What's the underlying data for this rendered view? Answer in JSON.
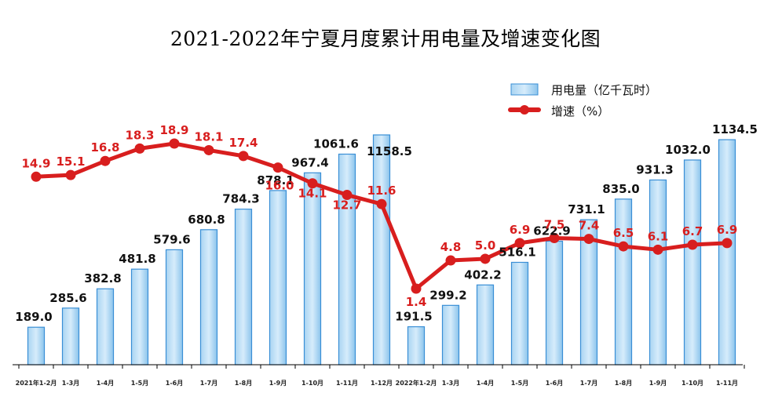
{
  "chart_data": {
    "type": "bar+line",
    "title": "2021-2022年宁夏月度累计用电量及增速变化图",
    "categories": [
      "2021年1-2月",
      "1-3月",
      "1-4月",
      "1-5月",
      "1-6月",
      "1-7月",
      "1-8月",
      "1-9月",
      "1-10月",
      "1-11月",
      "1-12月",
      "2022年1-2月",
      "1-3月",
      "1-4月",
      "1-5月",
      "1-6月",
      "1-7月",
      "1-8月",
      "1-9月",
      "1-10月",
      "1-11月"
    ],
    "series": [
      {
        "name": "用电量（亿千瓦时）",
        "type": "bar",
        "color": "#7fbde8",
        "values": [
          189.0,
          285.6,
          382.8,
          481.8,
          579.6,
          680.8,
          784.3,
          878.1,
          967.4,
          1061.6,
          1158.5,
          191.5,
          299.2,
          402.2,
          516.1,
          622.9,
          731.1,
          835.0,
          931.3,
          1032.0,
          1134.5
        ],
        "labels": [
          "189.0",
          "285.6",
          "382.8",
          "481.8",
          "579.6",
          "680.8",
          "784.3",
          "878.1",
          "967.4",
          "1061.6",
          "1158.5",
          "191.5",
          "299.2",
          "402.2",
          "516.1",
          "622.9",
          "731.1",
          "835.0",
          "931.3",
          "1032.0",
          "1134.5"
        ]
      },
      {
        "name": "增速（%）",
        "type": "line",
        "color": "#d81e1e",
        "values": [
          14.9,
          15.1,
          16.8,
          18.3,
          18.9,
          18.1,
          17.4,
          16.0,
          14.1,
          12.7,
          11.6,
          1.4,
          4.8,
          5.0,
          6.9,
          7.5,
          7.4,
          6.5,
          6.1,
          6.7,
          6.9
        ],
        "labels": [
          "14.9",
          "15.1",
          "16.8",
          "18.3",
          "18.9",
          "18.1",
          "17.4",
          "16.0",
          "14.1",
          "12.7",
          "11.6",
          "1.4",
          "4.8",
          "5.0",
          "6.9",
          "7.5",
          "7.4",
          "6.5",
          "6.1",
          "6.7",
          "6.9"
        ]
      }
    ],
    "legend_position": "top-right",
    "grid": false
  }
}
